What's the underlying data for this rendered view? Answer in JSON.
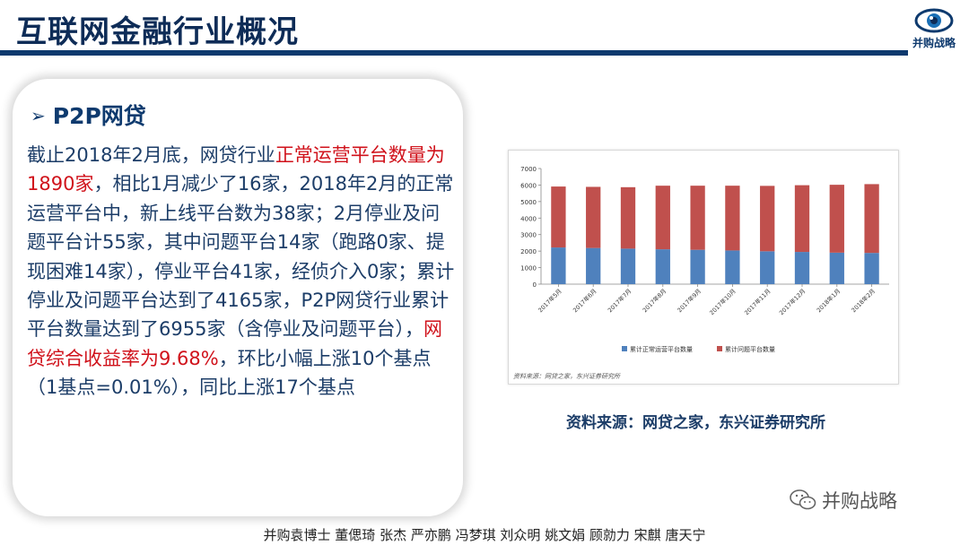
{
  "header": {
    "title": "互联网金融行业概况",
    "logo_text": "并购战略"
  },
  "section": {
    "bullet": "➢",
    "heading": "P2P网贷",
    "paragraph": [
      {
        "text": "截止2018年2月底，网贷行业",
        "highlight": false
      },
      {
        "text": "正常运营平台数量为1890家",
        "highlight": true
      },
      {
        "text": "，相比1月减少了16家，2018年2月的正常运营平台中，新上线平台数为38家；2月停业及问题平台计55家，其中问题平台14家（跑路0家、提现困难14家），停业平台41家，经侦介入0家；累计停业及问题平台达到了4165家，P2P网贷行业累计平台数量达到了6955家（含停业及问题平台），",
        "highlight": false
      },
      {
        "text": "网贷综合收益率为9.68%",
        "highlight": true
      },
      {
        "text": "，环比小幅上涨10个基点（1基点=0.01%），同比上涨17个基点",
        "highlight": false
      }
    ]
  },
  "chart_source_note": "资料来源：网贷之家，东兴证券研究所",
  "source_caption": "资料来源：网贷之家，东兴证券研究所",
  "wechat_label": "并购战略",
  "footer": "并购袁博士 董偲琦 张杰 严亦鹏 冯梦琪 刘众明 姚文娟 顾勍力 宋麒 唐天宁",
  "colors": {
    "title": "#0e2c57",
    "rule": "#0e3a6e",
    "text": "#1c3d68",
    "highlight": "#d0121b",
    "series_blue": "#4f81bd",
    "series_red": "#c0504d"
  },
  "chart_data": {
    "type": "bar",
    "stacked": true,
    "categories": [
      "2017年5月",
      "2017年6月",
      "2017年7月",
      "2017年8月",
      "2017年9月",
      "2017年10月",
      "2017年11月",
      "2017年12月",
      "2018年1月",
      "2018年2月"
    ],
    "series": [
      {
        "name": "累计正常运营平台数量",
        "color": "#4f81bd",
        "values": [
          2220,
          2190,
          2150,
          2110,
          2080,
          2040,
          1990,
          1950,
          1906,
          1890
        ]
      },
      {
        "name": "累计问题平台数量",
        "color": "#c0504d",
        "values": [
          3690,
          3700,
          3720,
          3850,
          3880,
          3920,
          3960,
          4040,
          4110,
          4165
        ]
      }
    ],
    "yticks": [
      "0",
      "1000",
      "2000",
      "3000",
      "4000",
      "5000",
      "6000",
      "7000"
    ],
    "ylim": [
      0,
      7000
    ],
    "legend_position": "bottom",
    "grid": false
  }
}
